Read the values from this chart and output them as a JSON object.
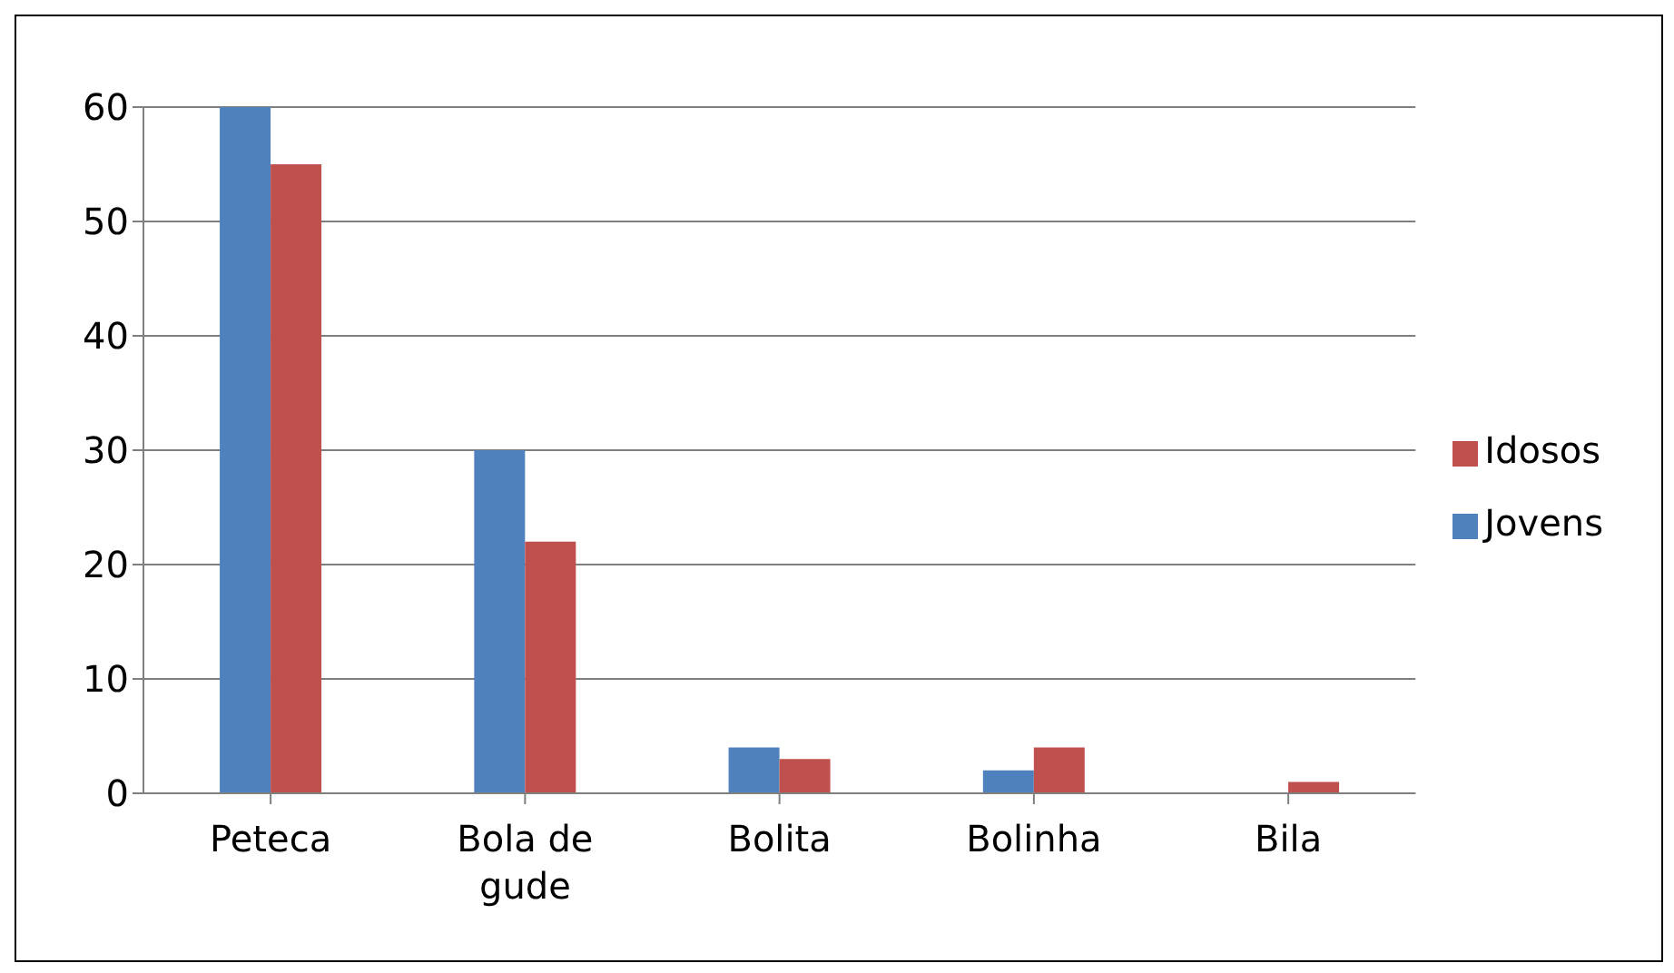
{
  "chart_data": {
    "type": "bar",
    "categories": [
      "Peteca",
      "Bola de gude",
      "Bolita",
      "Bolinha",
      "Bila"
    ],
    "series": [
      {
        "name": "Jovens",
        "color": "#4f81bd",
        "values": [
          60,
          30,
          4,
          2,
          0
        ]
      },
      {
        "name": "Idosos",
        "color": "#c0504d",
        "values": [
          55,
          22,
          3,
          4,
          1
        ]
      }
    ],
    "ylim": [
      0,
      60
    ],
    "yticks": [
      0,
      10,
      20,
      30,
      40,
      50,
      60
    ],
    "grid": "y",
    "legend": "right"
  }
}
